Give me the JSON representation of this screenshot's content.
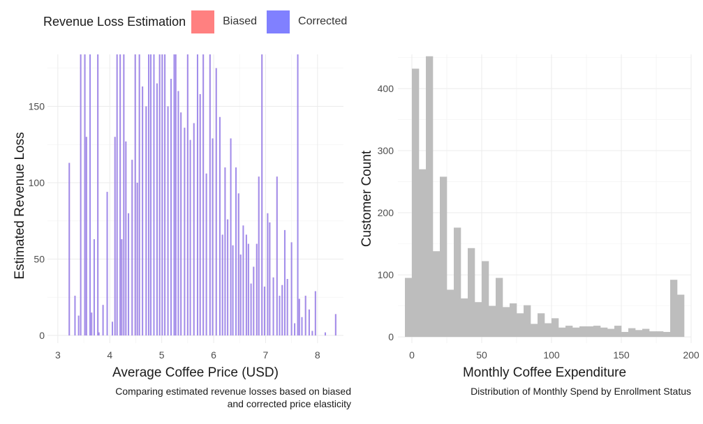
{
  "legend": {
    "title": "Revenue Loss Estimation",
    "items": [
      {
        "label": "Biased",
        "color": "#ff8080"
      },
      {
        "label": "Corrected",
        "color": "#8080ff"
      }
    ]
  },
  "chart_data": [
    {
      "type": "bar",
      "xlabel": "Average Coffee Price (USD)",
      "ylabel": "Estimated Revenue Loss",
      "caption_line1": "Comparing estimated revenue losses based on biased",
      "caption_line2": "and corrected price elasticity",
      "xlim": [
        2.8,
        8.5
      ],
      "ylim": [
        -5,
        184
      ],
      "x_ticks": [
        3,
        4,
        5,
        6,
        7,
        8
      ],
      "y_ticks": [
        0,
        50,
        100,
        150
      ],
      "grid": true,
      "series_colors": {
        "biased": "#ff8080",
        "corrected": "#8080ff"
      },
      "bars": [
        {
          "x": 3.22,
          "y": 113
        },
        {
          "x": 3.33,
          "y": 26
        },
        {
          "x": 3.4,
          "y": 13
        },
        {
          "x": 3.44,
          "y": 184
        },
        {
          "x": 3.52,
          "y": 184
        },
        {
          "x": 3.55,
          "y": 130
        },
        {
          "x": 3.62,
          "y": 184
        },
        {
          "x": 3.65,
          "y": 15
        },
        {
          "x": 3.7,
          "y": 63
        },
        {
          "x": 3.77,
          "y": 184
        },
        {
          "x": 3.79,
          "y": 2
        },
        {
          "x": 3.87,
          "y": 20
        },
        {
          "x": 3.95,
          "y": 94
        },
        {
          "x": 4.05,
          "y": 9
        },
        {
          "x": 4.1,
          "y": 130
        },
        {
          "x": 4.14,
          "y": 184
        },
        {
          "x": 4.2,
          "y": 184
        },
        {
          "x": 4.23,
          "y": 63
        },
        {
          "x": 4.27,
          "y": 184
        },
        {
          "x": 4.31,
          "y": 127
        },
        {
          "x": 4.36,
          "y": 80
        },
        {
          "x": 4.43,
          "y": 115
        },
        {
          "x": 4.49,
          "y": 184
        },
        {
          "x": 4.53,
          "y": 100
        },
        {
          "x": 4.57,
          "y": 184
        },
        {
          "x": 4.63,
          "y": 163
        },
        {
          "x": 4.7,
          "y": 150
        },
        {
          "x": 4.75,
          "y": 184
        },
        {
          "x": 4.79,
          "y": 184
        },
        {
          "x": 4.85,
          "y": 184
        },
        {
          "x": 4.91,
          "y": 165
        },
        {
          "x": 4.96,
          "y": 184
        },
        {
          "x": 5.01,
          "y": 184
        },
        {
          "x": 5.06,
          "y": 184
        },
        {
          "x": 5.12,
          "y": 150
        },
        {
          "x": 5.18,
          "y": 168
        },
        {
          "x": 5.24,
          "y": 184
        },
        {
          "x": 5.27,
          "y": 184
        },
        {
          "x": 5.32,
          "y": 160
        },
        {
          "x": 5.37,
          "y": 146
        },
        {
          "x": 5.44,
          "y": 136
        },
        {
          "x": 5.5,
          "y": 184
        },
        {
          "x": 5.55,
          "y": 128
        },
        {
          "x": 5.62,
          "y": 139
        },
        {
          "x": 5.69,
          "y": 184
        },
        {
          "x": 5.74,
          "y": 158
        },
        {
          "x": 5.8,
          "y": 184
        },
        {
          "x": 5.86,
          "y": 106
        },
        {
          "x": 5.93,
          "y": 184
        },
        {
          "x": 5.98,
          "y": 129
        },
        {
          "x": 6.05,
          "y": 175
        },
        {
          "x": 6.12,
          "y": 143
        },
        {
          "x": 6.17,
          "y": 66
        },
        {
          "x": 6.22,
          "y": 110
        },
        {
          "x": 6.27,
          "y": 76
        },
        {
          "x": 6.33,
          "y": 129
        },
        {
          "x": 6.37,
          "y": 59
        },
        {
          "x": 6.43,
          "y": 110
        },
        {
          "x": 6.48,
          "y": 93
        },
        {
          "x": 6.52,
          "y": 53
        },
        {
          "x": 6.57,
          "y": 72
        },
        {
          "x": 6.63,
          "y": 66
        },
        {
          "x": 6.67,
          "y": 60
        },
        {
          "x": 6.72,
          "y": 34
        },
        {
          "x": 6.77,
          "y": 45
        },
        {
          "x": 6.83,
          "y": 60
        },
        {
          "x": 6.87,
          "y": 104
        },
        {
          "x": 6.93,
          "y": 184
        },
        {
          "x": 6.98,
          "y": 32
        },
        {
          "x": 7.04,
          "y": 80
        },
        {
          "x": 7.08,
          "y": 74
        },
        {
          "x": 7.15,
          "y": 38
        },
        {
          "x": 7.22,
          "y": 104
        },
        {
          "x": 7.27,
          "y": 26
        },
        {
          "x": 7.32,
          "y": 33
        },
        {
          "x": 7.37,
          "y": 69
        },
        {
          "x": 7.42,
          "y": 37
        },
        {
          "x": 7.5,
          "y": 61
        },
        {
          "x": 7.56,
          "y": 8
        },
        {
          "x": 7.62,
          "y": 184
        },
        {
          "x": 7.65,
          "y": 24
        },
        {
          "x": 7.7,
          "y": 12
        },
        {
          "x": 7.77,
          "y": 26
        },
        {
          "x": 7.84,
          "y": 17
        },
        {
          "x": 7.9,
          "y": 3
        },
        {
          "x": 7.96,
          "y": 29
        },
        {
          "x": 8.15,
          "y": 2
        },
        {
          "x": 8.35,
          "y": 14
        }
      ]
    },
    {
      "type": "bar",
      "xlabel": "Monthly Coffee Expenditure",
      "ylabel": "Customer Count",
      "caption": "Distribution of Monthly Spend by Enrollment Status",
      "xlim": [
        -10,
        200
      ],
      "ylim": [
        -10,
        455
      ],
      "x_ticks": [
        0,
        50,
        100,
        150,
        200
      ],
      "y_ticks": [
        0,
        100,
        200,
        300,
        400
      ],
      "grid": true,
      "bar_color": "#bdbdbd",
      "bin_width": 5,
      "bin_starts": [
        -5,
        0,
        5,
        10,
        15,
        20,
        25,
        30,
        35,
        40,
        45,
        50,
        55,
        60,
        65,
        70,
        75,
        80,
        85,
        90,
        95,
        100,
        105,
        110,
        115,
        120,
        125,
        130,
        135,
        140,
        145,
        150,
        155,
        160,
        165,
        170,
        175,
        180,
        185,
        190
      ],
      "counts": [
        95,
        432,
        270,
        452,
        138,
        258,
        76,
        176,
        62,
        143,
        56,
        122,
        50,
        95,
        48,
        54,
        38,
        51,
        21,
        38,
        22,
        30,
        15,
        18,
        15,
        17,
        17,
        18,
        15,
        13,
        18,
        8,
        14,
        11,
        13,
        9,
        9,
        8,
        92,
        68
      ]
    }
  ]
}
